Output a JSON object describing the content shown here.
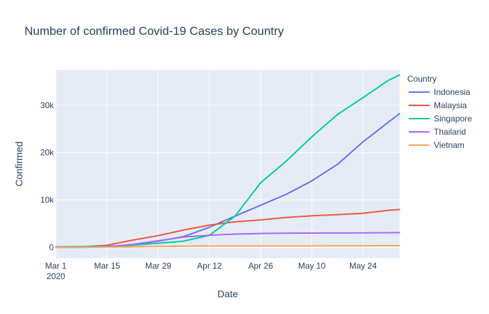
{
  "chart_data": {
    "type": "line",
    "title": "Number of confirmed Covid-19 Cases by Country",
    "xlabel": "Date",
    "ylabel": "Confirmed",
    "legend_title": "Country",
    "legend_position": "top-right",
    "grid": true,
    "background_color": "#e5ecf6",
    "xlim": [
      "2020-03-01",
      "2020-06-03"
    ],
    "ylim": [
      -2300,
      37500
    ],
    "x_ticks": [
      {
        "date": "2020-03-01",
        "label": "Mar 1",
        "sublabel": "2020"
      },
      {
        "date": "2020-03-15",
        "label": "Mar 15"
      },
      {
        "date": "2020-03-29",
        "label": "Mar 29"
      },
      {
        "date": "2020-04-12",
        "label": "Apr 12"
      },
      {
        "date": "2020-04-26",
        "label": "Apr 26"
      },
      {
        "date": "2020-05-10",
        "label": "May 10"
      },
      {
        "date": "2020-05-24",
        "label": "May 24"
      }
    ],
    "y_ticks": [
      {
        "value": 0,
        "label": "0"
      },
      {
        "value": 10000,
        "label": "10k"
      },
      {
        "value": 20000,
        "label": "20k"
      },
      {
        "value": 30000,
        "label": "30k"
      }
    ],
    "series": [
      {
        "name": "Indonesia",
        "color": "#636efa",
        "points": [
          [
            "2020-03-01",
            0
          ],
          [
            "2020-03-08",
            6
          ],
          [
            "2020-03-15",
            117
          ],
          [
            "2020-03-22",
            514
          ],
          [
            "2020-03-29",
            1285
          ],
          [
            "2020-04-05",
            2273
          ],
          [
            "2020-04-12",
            4241
          ],
          [
            "2020-04-19",
            6575
          ],
          [
            "2020-04-26",
            8882
          ],
          [
            "2020-05-03",
            11192
          ],
          [
            "2020-05-10",
            14032
          ],
          [
            "2020-05-17",
            17514
          ],
          [
            "2020-05-24",
            22271
          ],
          [
            "2020-05-31",
            26473
          ],
          [
            "2020-06-03",
            28233
          ]
        ]
      },
      {
        "name": "Malaysia",
        "color": "#ef553b",
        "points": [
          [
            "2020-03-01",
            29
          ],
          [
            "2020-03-08",
            93
          ],
          [
            "2020-03-15",
            428
          ],
          [
            "2020-03-22",
            1518
          ],
          [
            "2020-03-29",
            2470
          ],
          [
            "2020-04-05",
            3662
          ],
          [
            "2020-04-12",
            4683
          ],
          [
            "2020-04-19",
            5389
          ],
          [
            "2020-04-26",
            5780
          ],
          [
            "2020-05-03",
            6298
          ],
          [
            "2020-05-10",
            6656
          ],
          [
            "2020-05-17",
            6894
          ],
          [
            "2020-05-24",
            7185
          ],
          [
            "2020-05-31",
            7819
          ],
          [
            "2020-06-03",
            7970
          ]
        ]
      },
      {
        "name": "Singapore",
        "color": "#00cc96",
        "points": [
          [
            "2020-03-01",
            106
          ],
          [
            "2020-03-08",
            150
          ],
          [
            "2020-03-15",
            226
          ],
          [
            "2020-03-22",
            455
          ],
          [
            "2020-03-29",
            844
          ],
          [
            "2020-04-05",
            1309
          ],
          [
            "2020-04-12",
            2532
          ],
          [
            "2020-04-19",
            6588
          ],
          [
            "2020-04-26",
            13624
          ],
          [
            "2020-05-03",
            18205
          ],
          [
            "2020-05-10",
            23336
          ],
          [
            "2020-05-17",
            28038
          ],
          [
            "2020-05-24",
            31616
          ],
          [
            "2020-05-31",
            35292
          ],
          [
            "2020-06-03",
            36405
          ]
        ]
      },
      {
        "name": "Thailand",
        "color": "#ab63fa",
        "points": [
          [
            "2020-03-01",
            42
          ],
          [
            "2020-03-08",
            50
          ],
          [
            "2020-03-15",
            114
          ],
          [
            "2020-03-22",
            599
          ],
          [
            "2020-03-29",
            1388
          ],
          [
            "2020-04-05",
            2169
          ],
          [
            "2020-04-12",
            2551
          ],
          [
            "2020-04-19",
            2792
          ],
          [
            "2020-04-26",
            2922
          ],
          [
            "2020-05-03",
            2987
          ],
          [
            "2020-05-10",
            3009
          ],
          [
            "2020-05-17",
            3025
          ],
          [
            "2020-05-24",
            3042
          ],
          [
            "2020-05-31",
            3081
          ],
          [
            "2020-06-03",
            3101
          ]
        ]
      },
      {
        "name": "Vietnam",
        "color": "#ffa15a",
        "points": [
          [
            "2020-03-01",
            16
          ],
          [
            "2020-03-08",
            30
          ],
          [
            "2020-03-15",
            56
          ],
          [
            "2020-03-22",
            113
          ],
          [
            "2020-03-29",
            188
          ],
          [
            "2020-04-05",
            241
          ],
          [
            "2020-04-12",
            262
          ],
          [
            "2020-04-19",
            268
          ],
          [
            "2020-04-26",
            270
          ],
          [
            "2020-05-03",
            271
          ],
          [
            "2020-05-10",
            288
          ],
          [
            "2020-05-17",
            318
          ],
          [
            "2020-05-24",
            325
          ],
          [
            "2020-05-31",
            328
          ],
          [
            "2020-06-03",
            328
          ]
        ]
      }
    ]
  }
}
